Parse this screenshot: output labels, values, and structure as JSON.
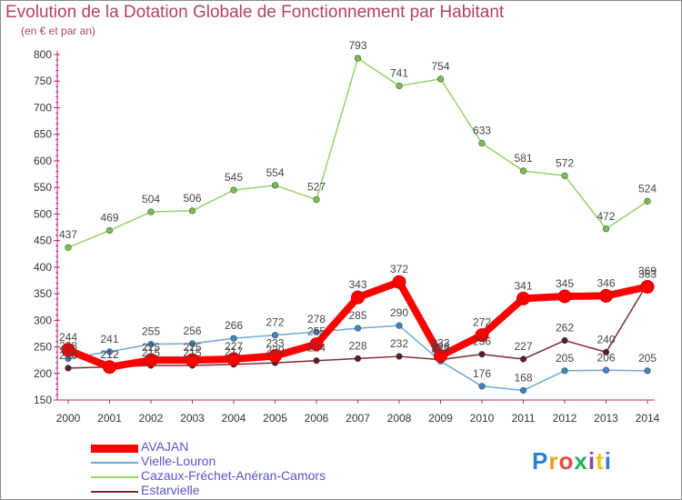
{
  "header": {
    "title": "Evolution de la Dotation Globale de Fonctionnement par Habitant",
    "subtitle": "(en € et par an)"
  },
  "logo": {
    "text": "Proxiti"
  },
  "colors": {
    "title": "#b43f6b",
    "axis": "#c0266e",
    "legend_text": "#5555cc"
  },
  "chart_data": {
    "type": "line",
    "x": [
      2000,
      2001,
      2002,
      2003,
      2004,
      2005,
      2006,
      2007,
      2008,
      2009,
      2010,
      2011,
      2012,
      2013,
      2014
    ],
    "ylim": [
      150,
      800
    ],
    "yticks": [
      150,
      200,
      250,
      300,
      350,
      400,
      450,
      500,
      550,
      600,
      650,
      700,
      750,
      800
    ],
    "grid": false,
    "legend_position": "bottom",
    "series": [
      {
        "name": "AVAJAN",
        "color": "#ff0000",
        "marker": "#ee2020",
        "values": [
          244,
          212,
          225,
          225,
          227,
          233,
          255,
          343,
          372,
          233,
          272,
          341,
          345,
          346,
          363
        ]
      },
      {
        "name": "Vielle-Louron",
        "color": "#6fa8dc",
        "marker": "#3d85c6",
        "values": [
          228,
          241,
          255,
          256,
          266,
          272,
          278,
          285,
          290,
          223,
          176,
          168,
          205,
          206,
          205
        ]
      },
      {
        "name": "Cazaux-Fréchet-Anéran-Camors",
        "color": "#93d26a",
        "marker": "#79c24a",
        "values": [
          437,
          469,
          504,
          506,
          545,
          554,
          527,
          793,
          741,
          754,
          633,
          581,
          572,
          472,
          524
        ]
      },
      {
        "name": "Estarvielle",
        "color": "#7a2a34",
        "marker": "#5c1c24",
        "values": [
          210,
          212,
          215,
          215,
          217,
          220,
          224,
          228,
          232,
          226,
          236,
          227,
          262,
          240,
          369
        ]
      }
    ]
  }
}
